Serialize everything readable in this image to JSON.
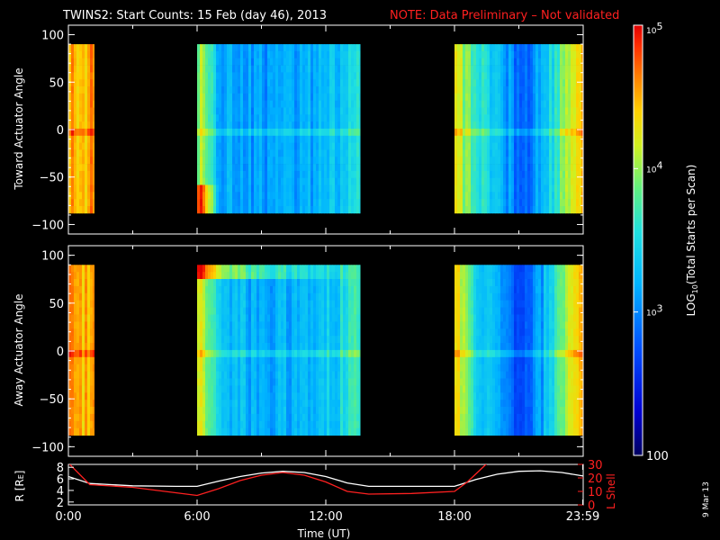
{
  "title": {
    "main": "TWINS2: Start Counts: 15 Feb (day  46), 2013",
    "note": "NOTE: Data Preliminary – Not validated",
    "note_color": "#ff2020"
  },
  "date_stamp": "9 Mar 13",
  "chart_data": [
    {
      "type": "heatmap",
      "name": "toward",
      "ylabel": "Toward Actuator Angle",
      "ylim": [
        -110,
        110
      ],
      "yticks": [
        "100",
        "50",
        "0",
        "−50",
        "−100"
      ],
      "ytick_values": [
        100,
        50,
        0,
        -50,
        -100
      ],
      "y_data_range": [
        -88,
        90
      ],
      "x_unit": "hours UT",
      "xlim": [
        0,
        24
      ],
      "coverage_hours": [
        [
          0.0,
          1.2
        ],
        [
          6.0,
          13.6
        ],
        [
          18.0,
          24.0
        ]
      ],
      "log_counts": {
        "description": "LOG10 Total Starts per Scan, by hour (approx.)",
        "hour": [
          0.1,
          0.6,
          1.0,
          6.1,
          7.0,
          8.5,
          10.0,
          11.5,
          12.5,
          13.3,
          18.1,
          19.0,
          20.0,
          21.0,
          22.0,
          23.0,
          23.9
        ],
        "value": [
          4.6,
          4.3,
          4.6,
          4.0,
          3.2,
          3.1,
          3.1,
          3.2,
          3.3,
          3.5,
          4.2,
          3.6,
          3.3,
          2.8,
          3.2,
          3.9,
          4.6
        ]
      }
    },
    {
      "type": "heatmap",
      "name": "away",
      "ylabel": "Away Actuator Angle",
      "ylim": [
        -110,
        110
      ],
      "yticks": [
        "100",
        "50",
        "0",
        "−50",
        "−100"
      ],
      "ytick_values": [
        100,
        50,
        0,
        -50,
        -100
      ],
      "y_data_range": [
        -88,
        90
      ],
      "x_unit": "hours UT",
      "xlim": [
        0,
        24
      ],
      "coverage_hours": [
        [
          0.0,
          1.2
        ],
        [
          6.0,
          13.6
        ],
        [
          18.0,
          24.0
        ]
      ],
      "log_counts": {
        "description": "LOG10 Total Starts per Scan, by hour (approx.)",
        "hour": [
          0.1,
          0.6,
          1.0,
          6.1,
          7.0,
          8.5,
          10.0,
          11.5,
          12.5,
          13.3,
          18.1,
          19.0,
          20.0,
          21.0,
          22.0,
          23.0,
          23.9
        ],
        "value": [
          4.7,
          4.4,
          4.6,
          4.2,
          3.3,
          3.2,
          3.2,
          3.3,
          3.4,
          3.7,
          4.3,
          3.5,
          3.1,
          2.7,
          3.1,
          4.0,
          4.6
        ]
      }
    },
    {
      "type": "line",
      "name": "orbit",
      "xlim": [
        0,
        24
      ],
      "xticks": [
        "0:00",
        "6:00",
        "12:00",
        "18:00",
        "23:59"
      ],
      "xtick_values": [
        0,
        6,
        12,
        18,
        23.98
      ],
      "xlabel": "Time (UT)",
      "ylabel_left": "R [RE]",
      "ylim_left": [
        1.5,
        8.5
      ],
      "yticks_left": [
        "8",
        "6",
        "4",
        "2"
      ],
      "ytick_values_left": [
        8,
        6,
        4,
        2
      ],
      "ylabel_right": "L Shell",
      "ylim_right": [
        0,
        30
      ],
      "yticks_right": [
        "30",
        "20",
        "10",
        "0"
      ],
      "ytick_values_right": [
        30,
        20,
        10,
        0
      ],
      "series": [
        {
          "color": "#ffffff",
          "axis": "left",
          "x": [
            0,
            1,
            3,
            5,
            6,
            7,
            8,
            9,
            10,
            11,
            12,
            13,
            14,
            16,
            18,
            19,
            20,
            21,
            22,
            23,
            24
          ],
          "y": [
            6.4,
            5.2,
            4.8,
            4.7,
            4.7,
            5.6,
            6.4,
            7.0,
            7.3,
            7.1,
            6.4,
            5.3,
            4.7,
            4.7,
            4.7,
            5.9,
            6.8,
            7.3,
            7.4,
            7.1,
            6.5
          ]
        },
        {
          "color": "#ff2020",
          "axis": "right",
          "x": [
            0,
            1,
            3,
            5,
            6,
            7,
            8,
            9,
            10,
            11,
            12,
            13,
            14,
            16,
            18,
            18.6,
            19.2,
            19.6
          ],
          "y": [
            31,
            15,
            13,
            9,
            7,
            12,
            18,
            22,
            24,
            22,
            17,
            10,
            8,
            8.5,
            10,
            17,
            26,
            32
          ]
        }
      ]
    }
  ],
  "colorbar": {
    "label": "LOG10(Total Starts per Scan)",
    "label_main": "LOG",
    "label_sub": "10",
    "label_rest": "(Total Starts per Scan)",
    "min": 2.0,
    "max": 5.0,
    "ticks": [
      {
        "value": 5,
        "base": "10",
        "exp": "5"
      },
      {
        "value": 4,
        "base": "10",
        "exp": "4"
      },
      {
        "value": 3,
        "base": "10",
        "exp": "3"
      },
      {
        "value": 2,
        "base": "100",
        "exp": ""
      }
    ]
  },
  "ylabel_left_orbit": {
    "main": "R [R",
    "sub": "E",
    "end": "]"
  }
}
